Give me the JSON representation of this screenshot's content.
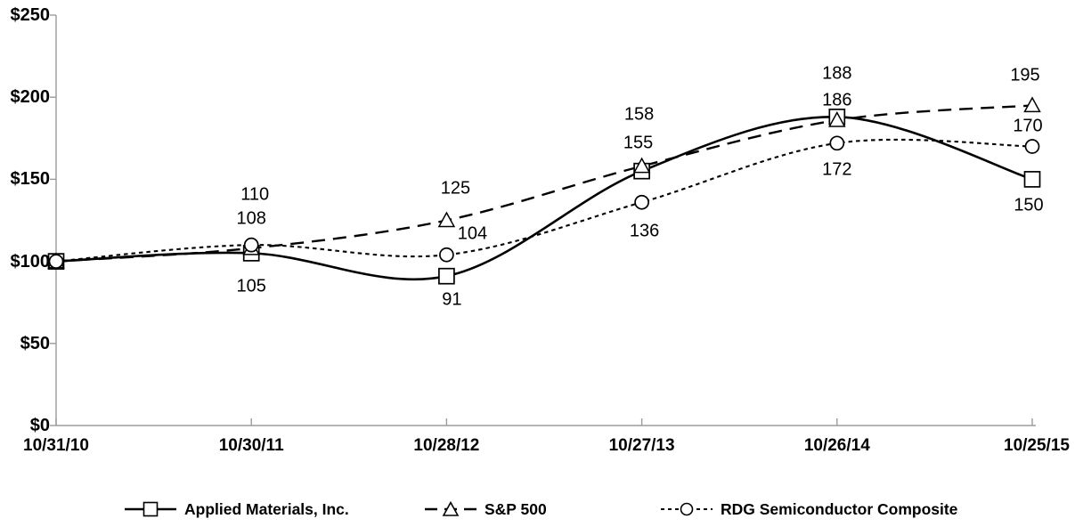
{
  "chart_data": {
    "type": "line",
    "title": "",
    "xlabel": "",
    "ylabel": "",
    "categories": [
      "10/31/10",
      "10/30/11",
      "10/28/12",
      "10/27/13",
      "10/26/14",
      "10/25/15"
    ],
    "y_ticks": [
      "$0",
      "$50",
      "$100",
      "$150",
      "$200",
      "$250"
    ],
    "y_tick_values": [
      0,
      50,
      100,
      150,
      200,
      250
    ],
    "ylim": [
      0,
      250
    ],
    "grid": false,
    "legend_position": "bottom",
    "series": [
      {
        "name": "Applied Materials, Inc.",
        "marker": "square",
        "line_style": "solid",
        "values": [
          100,
          105,
          91,
          155,
          188,
          150
        ]
      },
      {
        "name": "S&P 500",
        "marker": "triangle",
        "line_style": "long-dash",
        "values": [
          100,
          108,
          125,
          158,
          186,
          195
        ]
      },
      {
        "name": "RDG Semiconductor Composite",
        "marker": "circle",
        "line_style": "short-dash",
        "values": [
          100,
          110,
          104,
          136,
          172,
          170
        ]
      }
    ],
    "colors": {
      "line": "#000000",
      "marker_fill": "#ffffff",
      "axis": "#9b9b9b",
      "text": "#000000",
      "background": "#ffffff"
    }
  }
}
